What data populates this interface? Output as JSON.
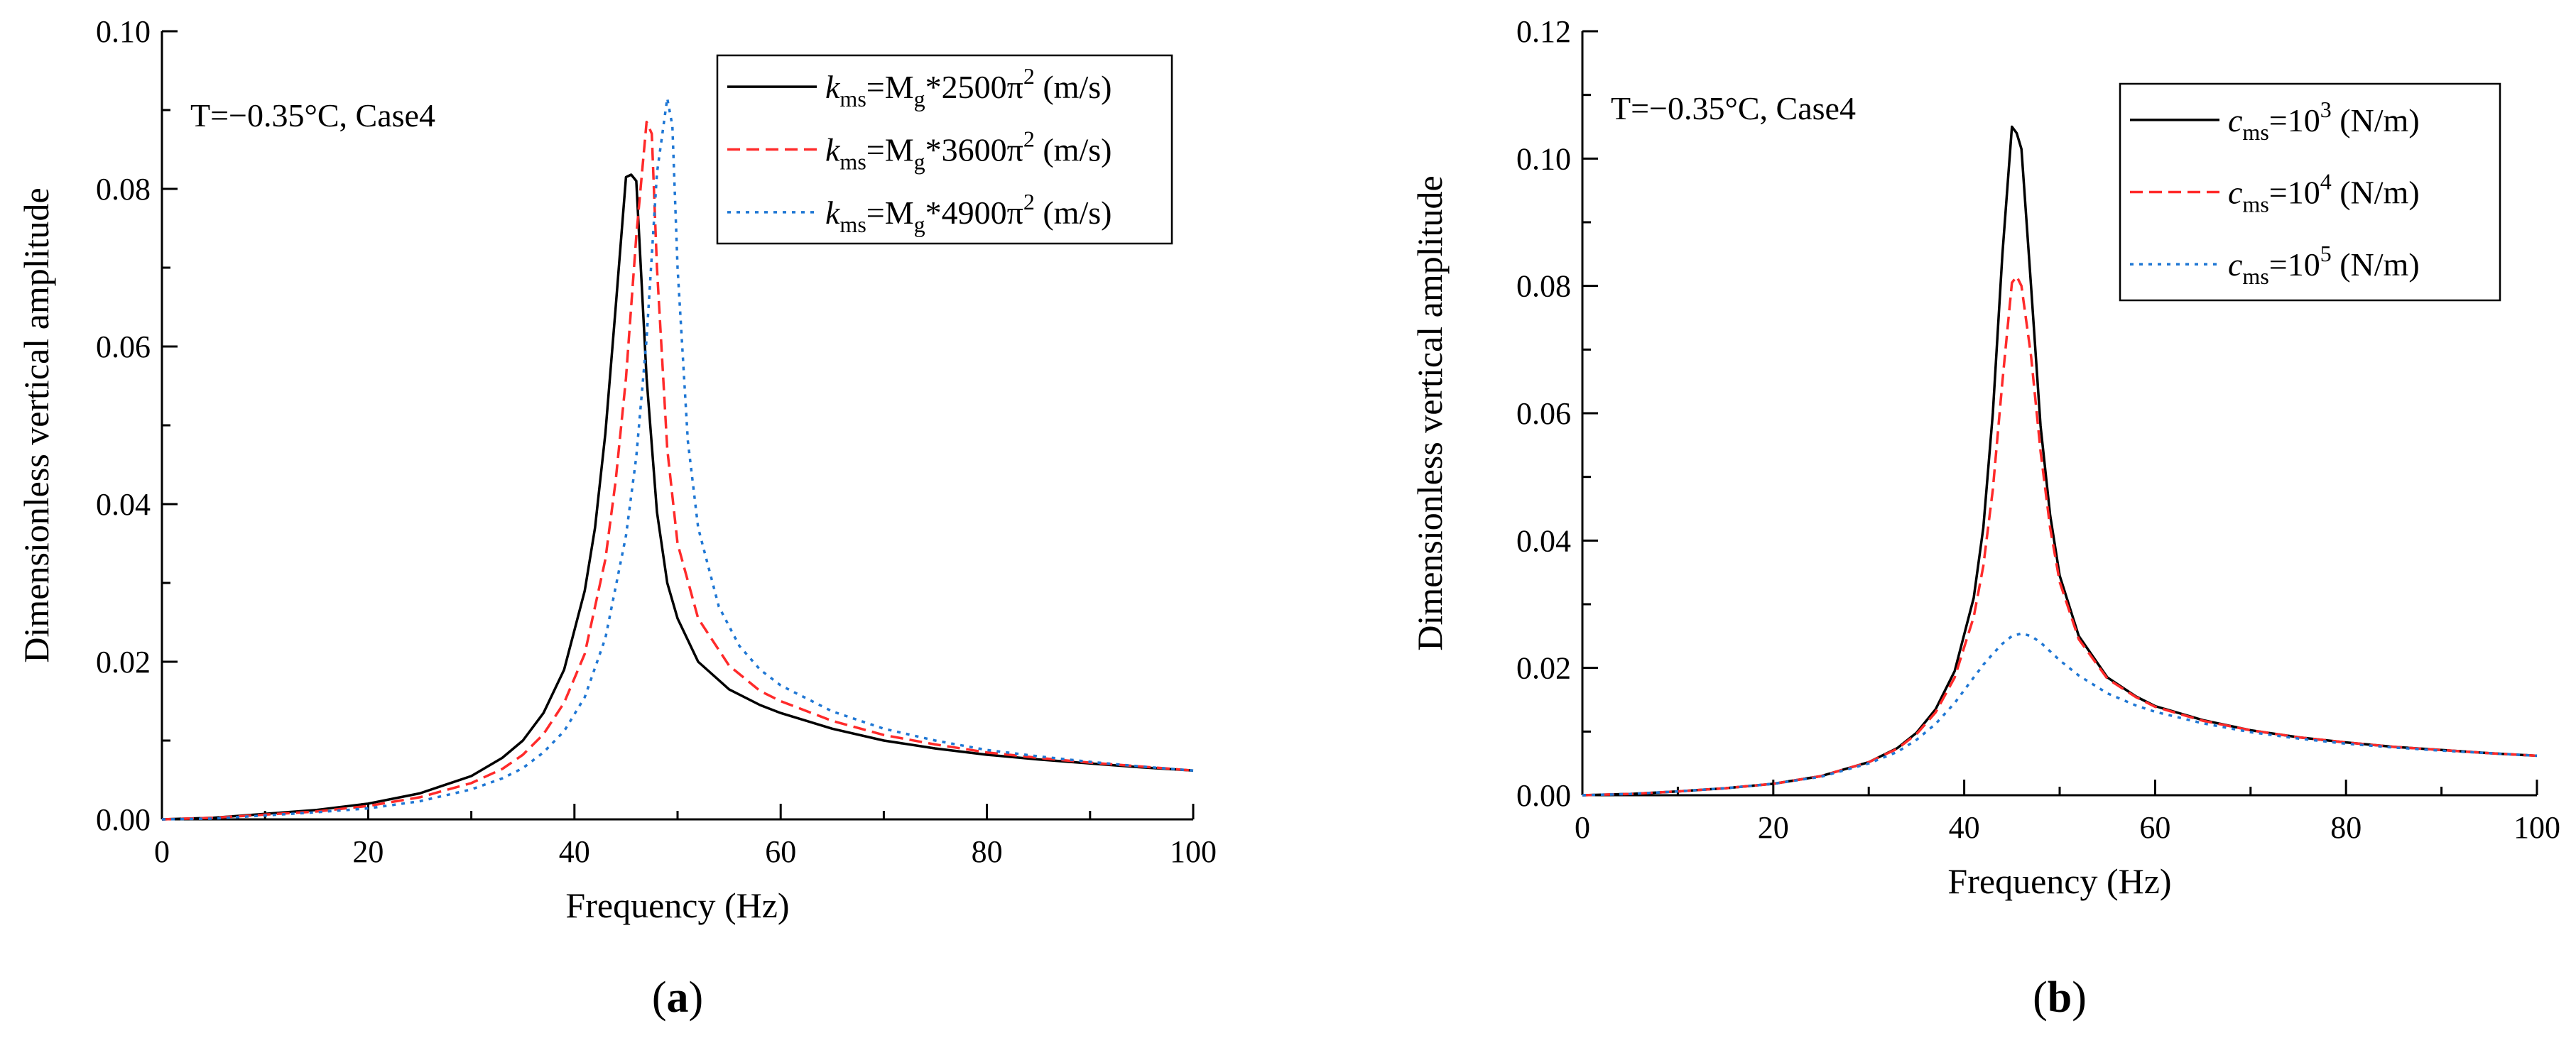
{
  "chart_data": [
    {
      "type": "line",
      "panel_label": "(a)",
      "panel_label_parts": [
        "(",
        "a",
        ")"
      ],
      "annotation": "T=−0.35°C, Case4",
      "xlabel": "Frequency (Hz)",
      "ylabel": "Dimensionless vertical amplitude",
      "xlim": [
        0,
        100
      ],
      "ylim": [
        0,
        0.1
      ],
      "xticks": [
        0,
        20,
        40,
        60,
        80,
        100
      ],
      "xtick_labels": [
        "0",
        "20",
        "40",
        "60",
        "80",
        "100"
      ],
      "yticks": [
        0,
        0.02,
        0.04,
        0.06,
        0.08,
        0.1
      ],
      "ytick_labels": [
        "0.00",
        "0.02",
        "0.04",
        "0.06",
        "0.08",
        "0.10"
      ],
      "legend_position": "top-right",
      "series": [
        {
          "name": "kms=Mg*2500π² (m/s)",
          "legend_parts": {
            "sym": "k",
            "sub": "ms",
            "mid": "=M",
            "sub2": "g",
            "mid2": "*2500π",
            "sup": "2",
            "post": " (m/s)"
          },
          "color": "#000000",
          "dash": "solid",
          "x": [
            0,
            5,
            10,
            15,
            20,
            25,
            30,
            33,
            35,
            37,
            39,
            41,
            42,
            43,
            44,
            45,
            45.5,
            46,
            47,
            48,
            49,
            50,
            52,
            55,
            58,
            60,
            65,
            70,
            75,
            80,
            85,
            90,
            95,
            100
          ],
          "y": [
            0,
            0.0002,
            0.0007,
            0.0012,
            0.002,
            0.0033,
            0.0055,
            0.0078,
            0.01,
            0.0135,
            0.019,
            0.029,
            0.037,
            0.049,
            0.065,
            0.0815,
            0.0818,
            0.081,
            0.056,
            0.039,
            0.03,
            0.0255,
            0.02,
            0.0165,
            0.0145,
            0.0135,
            0.0115,
            0.01,
            0.009,
            0.0082,
            0.0076,
            0.0071,
            0.0066,
            0.0062
          ]
        },
        {
          "name": "kms=Mg*3600π² (m/s)",
          "legend_parts": {
            "sym": "k",
            "sub": "ms",
            "mid": "=M",
            "sub2": "g",
            "mid2": "*3600π",
            "sup": "2",
            "post": " (m/s)"
          },
          "color": "#ff2a2a",
          "dash": "dashed",
          "x": [
            0,
            5,
            10,
            15,
            20,
            25,
            30,
            33,
            35,
            37,
            39,
            41,
            43,
            44,
            45,
            46,
            47,
            47.5,
            48,
            49,
            50,
            52,
            55,
            58,
            60,
            65,
            70,
            75,
            80,
            85,
            90,
            95,
            100
          ],
          "y": [
            0,
            0.0002,
            0.0006,
            0.001,
            0.0017,
            0.0028,
            0.0046,
            0.0064,
            0.0082,
            0.0108,
            0.0148,
            0.021,
            0.033,
            0.043,
            0.056,
            0.074,
            0.0885,
            0.087,
            0.07,
            0.047,
            0.035,
            0.0255,
            0.0195,
            0.0163,
            0.015,
            0.0125,
            0.0107,
            0.0095,
            0.0085,
            0.0078,
            0.0072,
            0.0067,
            0.0062
          ]
        },
        {
          "name": "kms=Mg*4900π² (m/s)",
          "legend_parts": {
            "sym": "k",
            "sub": "ms",
            "mid": "=M",
            "sub2": "g",
            "mid2": "*4900π",
            "sup": "2",
            "post": " (m/s)"
          },
          "color": "#1f77d4",
          "dash": "dotted",
          "x": [
            0,
            5,
            10,
            15,
            20,
            25,
            30,
            33,
            35,
            37,
            39,
            41,
            43,
            45,
            46,
            47,
            48,
            49,
            49.5,
            50,
            51,
            52,
            54,
            56,
            58,
            60,
            65,
            70,
            75,
            80,
            85,
            90,
            95,
            100
          ],
          "y": [
            0,
            0.0001,
            0.0005,
            0.0009,
            0.0014,
            0.0023,
            0.0038,
            0.0052,
            0.0065,
            0.0085,
            0.0112,
            0.0155,
            0.023,
            0.036,
            0.046,
            0.061,
            0.082,
            0.0915,
            0.088,
            0.07,
            0.048,
            0.037,
            0.027,
            0.022,
            0.019,
            0.017,
            0.0137,
            0.0115,
            0.01,
            0.0088,
            0.008,
            0.0073,
            0.0067,
            0.0062
          ]
        }
      ]
    },
    {
      "type": "line",
      "panel_label": "(b)",
      "panel_label_parts": [
        "(",
        "b",
        ")"
      ],
      "annotation": "T=−0.35°C, Case4",
      "xlabel": "Frequency (Hz)",
      "ylabel": "Dimensionless vertical amplitude",
      "xlim": [
        0,
        100
      ],
      "ylim": [
        0,
        0.12
      ],
      "xticks": [
        0,
        20,
        40,
        60,
        80,
        100
      ],
      "xtick_labels": [
        "0",
        "20",
        "40",
        "60",
        "80",
        "100"
      ],
      "yticks": [
        0,
        0.02,
        0.04,
        0.06,
        0.08,
        0.1,
        0.12
      ],
      "ytick_labels": [
        "0.00",
        "0.02",
        "0.04",
        "0.06",
        "0.08",
        "0.10",
        "0.12"
      ],
      "legend_position": "top-right",
      "series": [
        {
          "name": "cms=10³ (N/m)",
          "legend_parts": {
            "sym": "c",
            "sub": "ms",
            "mid": "=10",
            "sub2": "",
            "mid2": "",
            "sup": "3",
            "post": " (N/m)"
          },
          "color": "#000000",
          "dash": "solid",
          "x": [
            0,
            5,
            10,
            15,
            20,
            25,
            30,
            33,
            35,
            37,
            39,
            41,
            42,
            43,
            44,
            45,
            45.5,
            46,
            47,
            48,
            49,
            50,
            52,
            55,
            58,
            60,
            65,
            70,
            75,
            80,
            85,
            90,
            95,
            100
          ],
          "y": [
            0,
            0.0002,
            0.0006,
            0.0011,
            0.0018,
            0.003,
            0.0052,
            0.0074,
            0.0098,
            0.0135,
            0.0195,
            0.031,
            0.042,
            0.06,
            0.085,
            0.105,
            0.104,
            0.1015,
            0.08,
            0.058,
            0.044,
            0.0345,
            0.025,
            0.0185,
            0.0155,
            0.014,
            0.0118,
            0.0102,
            0.0091,
            0.0083,
            0.0076,
            0.0071,
            0.0066,
            0.0062
          ]
        },
        {
          "name": "cms=10⁴ (N/m)",
          "legend_parts": {
            "sym": "c",
            "sub": "ms",
            "mid": "=10",
            "sub2": "",
            "mid2": "",
            "sup": "4",
            "post": " (N/m)"
          },
          "color": "#ff2a2a",
          "dash": "dashed",
          "x": [
            0,
            5,
            10,
            15,
            20,
            25,
            30,
            33,
            35,
            37,
            39,
            41,
            42,
            43,
            44,
            45,
            45.5,
            46,
            47,
            48,
            49,
            50,
            52,
            55,
            58,
            60,
            65,
            70,
            75,
            80,
            85,
            90,
            95,
            100
          ],
          "y": [
            0,
            0.0002,
            0.0006,
            0.0011,
            0.0018,
            0.003,
            0.0052,
            0.0073,
            0.0096,
            0.013,
            0.0185,
            0.028,
            0.036,
            0.048,
            0.065,
            0.0805,
            0.0815,
            0.08,
            0.069,
            0.054,
            0.042,
            0.0335,
            0.0245,
            0.0183,
            0.0154,
            0.0139,
            0.0117,
            0.0102,
            0.0091,
            0.0083,
            0.0076,
            0.0071,
            0.0066,
            0.0062
          ]
        },
        {
          "name": "cms=10⁵ (N/m)",
          "legend_parts": {
            "sym": "c",
            "sub": "ms",
            "mid": "=10",
            "sub2": "",
            "mid2": "",
            "sup": "5",
            "post": " (N/m)"
          },
          "color": "#1f77d4",
          "dash": "dotted",
          "x": [
            0,
            5,
            10,
            15,
            20,
            25,
            30,
            33,
            35,
            37,
            39,
            41,
            42,
            43,
            44,
            45,
            46,
            47,
            48,
            49,
            50,
            52,
            55,
            58,
            60,
            65,
            70,
            75,
            80,
            85,
            90,
            95,
            100
          ],
          "y": [
            0,
            0.0002,
            0.0006,
            0.0011,
            0.0018,
            0.0029,
            0.005,
            0.0068,
            0.0087,
            0.0112,
            0.0145,
            0.0185,
            0.0205,
            0.0222,
            0.0238,
            0.025,
            0.0254,
            0.025,
            0.024,
            0.0226,
            0.0212,
            0.0188,
            0.016,
            0.0141,
            0.0131,
            0.0113,
            0.0099,
            0.0089,
            0.0081,
            0.0075,
            0.007,
            0.0066,
            0.0062
          ]
        }
      ]
    }
  ]
}
